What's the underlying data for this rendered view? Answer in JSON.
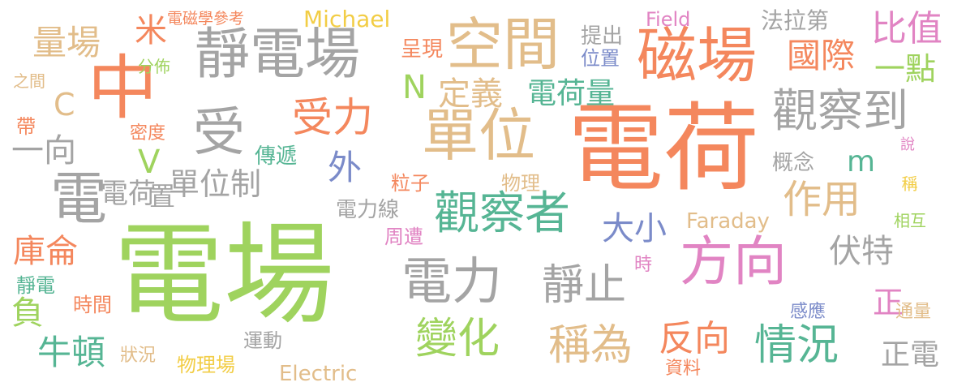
{
  "colors": {
    "green": "#9fd35e",
    "orange": "#f4875d",
    "gray": "#a4a4a4",
    "tan": "#e2bd8a",
    "pink": "#e184c3",
    "teal": "#56b594",
    "blue": "#7b8bc9",
    "yellow": "#f2cd45"
  },
  "words": [
    {
      "text": "電場",
      "color": "green"
    },
    {
      "text": "電荷",
      "color": "orange"
    },
    {
      "text": "中",
      "color": "orange"
    },
    {
      "text": "靜電場",
      "color": "gray"
    },
    {
      "text": "空間",
      "color": "tan"
    },
    {
      "text": "磁場",
      "color": "orange"
    },
    {
      "text": "單位",
      "color": "tan"
    },
    {
      "text": "受",
      "color": "gray"
    },
    {
      "text": "方向",
      "color": "pink"
    },
    {
      "text": "觀察者",
      "color": "teal"
    },
    {
      "text": "電力",
      "color": "gray"
    },
    {
      "text": "觀察到",
      "color": "gray"
    },
    {
      "text": "受力",
      "color": "orange"
    },
    {
      "text": "靜止",
      "color": "gray"
    },
    {
      "text": "稱為",
      "color": "tan"
    },
    {
      "text": "變化",
      "color": "green"
    },
    {
      "text": "情況",
      "color": "teal"
    },
    {
      "text": "反向",
      "color": "orange"
    },
    {
      "text": "作用",
      "color": "tan"
    },
    {
      "text": "電荷量",
      "color": "teal"
    },
    {
      "text": "大小",
      "color": "blue"
    },
    {
      "text": "伏特",
      "color": "gray"
    },
    {
      "text": "國際",
      "color": "orange"
    },
    {
      "text": "比值",
      "color": "pink"
    },
    {
      "text": "單位制",
      "color": "gray"
    },
    {
      "text": "電荷",
      "color": "gray"
    },
    {
      "text": "量場",
      "color": "tan"
    },
    {
      "text": "定義",
      "color": "tan"
    },
    {
      "text": "庫侖",
      "color": "orange"
    },
    {
      "text": "一向",
      "color": "gray"
    },
    {
      "text": "牛頓",
      "color": "teal"
    },
    {
      "text": "外",
      "color": "blue"
    },
    {
      "text": "電",
      "color": "gray"
    },
    {
      "text": "置",
      "color": "gray"
    },
    {
      "text": "負",
      "color": "green"
    },
    {
      "text": "米",
      "color": "orange"
    },
    {
      "text": "正",
      "color": "pink"
    },
    {
      "text": "正電",
      "color": "gray"
    },
    {
      "text": "法拉第",
      "color": "gray"
    },
    {
      "text": "一點",
      "color": "green"
    },
    {
      "text": "C",
      "color": "tan"
    },
    {
      "text": "V",
      "color": "green"
    },
    {
      "text": "N",
      "color": "green"
    },
    {
      "text": "m",
      "color": "teal"
    },
    {
      "text": "Michael",
      "color": "yellow"
    },
    {
      "text": "Electric",
      "color": "tan"
    },
    {
      "text": "Faraday",
      "color": "tan"
    },
    {
      "text": "Field",
      "color": "pink"
    },
    {
      "text": "電磁學參考",
      "color": "orange"
    },
    {
      "text": "分佈",
      "color": "green"
    },
    {
      "text": "之間",
      "color": "tan"
    },
    {
      "text": "呈現",
      "color": "orange"
    },
    {
      "text": "提出",
      "color": "gray"
    },
    {
      "text": "位置",
      "color": "blue"
    },
    {
      "text": "帶",
      "color": "orange"
    },
    {
      "text": "密度",
      "color": "orange"
    },
    {
      "text": "傳遞",
      "color": "teal"
    },
    {
      "text": "概念",
      "color": "gray"
    },
    {
      "text": "說",
      "color": "pink"
    },
    {
      "text": "粒子",
      "color": "orange"
    },
    {
      "text": "物理",
      "color": "tan"
    },
    {
      "text": "稱",
      "color": "yellow"
    },
    {
      "text": "電力線",
      "color": "gray"
    },
    {
      "text": "周遭",
      "color": "pink"
    },
    {
      "text": "相互",
      "color": "green"
    },
    {
      "text": "時",
      "color": "pink"
    },
    {
      "text": "靜電",
      "color": "teal"
    },
    {
      "text": "時間",
      "color": "orange"
    },
    {
      "text": "感應",
      "color": "blue"
    },
    {
      "text": "通量",
      "color": "tan"
    },
    {
      "text": "運動",
      "color": "gray"
    },
    {
      "text": "狀況",
      "color": "tan"
    },
    {
      "text": "物理場",
      "color": "yellow"
    },
    {
      "text": "資料",
      "color": "orange"
    }
  ]
}
